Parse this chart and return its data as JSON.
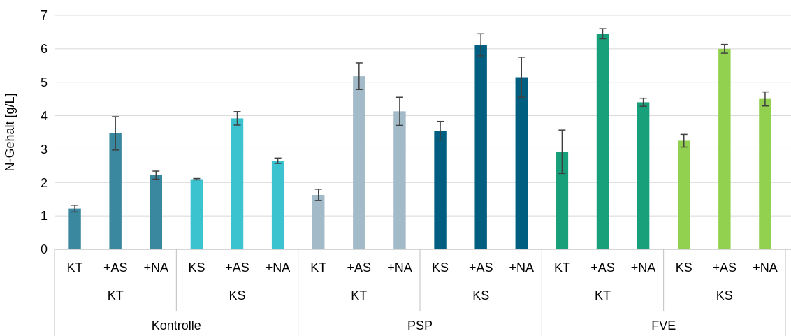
{
  "chart_data": {
    "type": "bar",
    "ylabel": "N-Gehalt  [g/L]",
    "categories": [
      "KT",
      "+AS",
      "+NA",
      "KS",
      "+AS",
      "+NA",
      "KT",
      "+AS",
      "+NA",
      "KS",
      "+AS",
      "+NA",
      "KT",
      "+AS",
      "+NA",
      "KS",
      "+AS",
      "+NA"
    ],
    "values": [
      1.22,
      3.47,
      2.22,
      2.1,
      3.92,
      2.65,
      1.63,
      5.18,
      4.13,
      3.55,
      6.12,
      5.15,
      2.92,
      6.45,
      4.4,
      3.25,
      6.0,
      4.5
    ],
    "errors": [
      0.1,
      0.5,
      0.12,
      0.02,
      0.2,
      0.08,
      0.17,
      0.4,
      0.42,
      0.28,
      0.33,
      0.6,
      0.65,
      0.15,
      0.12,
      0.19,
      0.13,
      0.21
    ],
    "colors": [
      "#3a87a0",
      "#3a87a0",
      "#3a87a0",
      "#3cc3d0",
      "#3cc3d0",
      "#3cc3d0",
      "#a3bac8",
      "#a3bac8",
      "#a3bac8",
      "#005f80",
      "#005f80",
      "#005f80",
      "#18a07a",
      "#18a07a",
      "#18a07a",
      "#92d050",
      "#92d050",
      "#92d050"
    ],
    "annotations": [
      "KT",
      "KS",
      "KT",
      "KS",
      "KT",
      "KS",
      "Kontrolle",
      "PSP",
      "FVE"
    ],
    "ylim": [
      0,
      7
    ],
    "yticks": [
      0,
      1,
      2,
      3,
      4,
      5,
      6,
      7
    ],
    "grid": "y"
  }
}
